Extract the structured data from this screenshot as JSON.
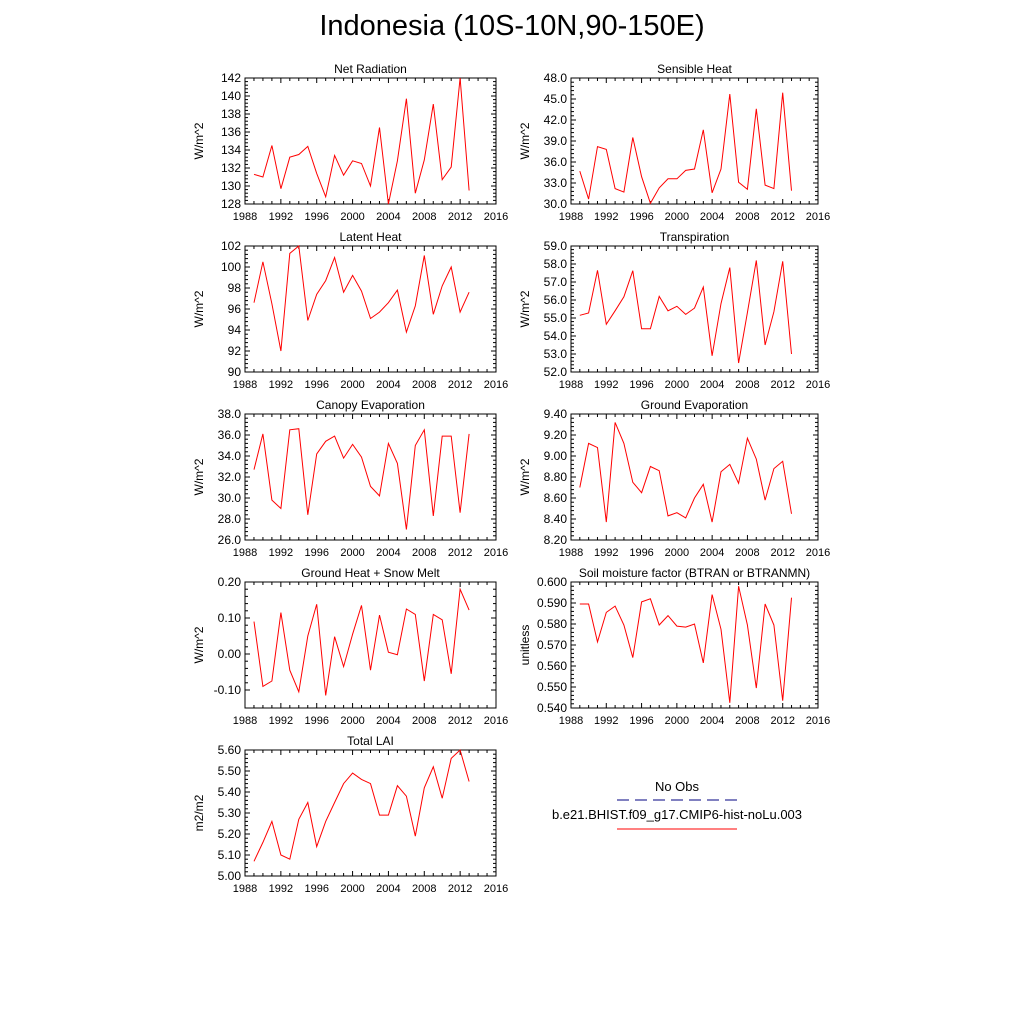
{
  "figure": {
    "title": "Indonesia (10S-10N,90-150E)",
    "series_color": "#ff0000",
    "obs_color": "#000080"
  },
  "legend": {
    "obs_label": "No Obs",
    "model_label": "b.e21.BHIST.f09_g17.CMIP6-hist-noLu.003"
  },
  "chart_data": [
    {
      "type": "line",
      "title": "Net Radiation",
      "ylabel": "W/m^2",
      "ylim": [
        128,
        142
      ],
      "yticks": [
        "128",
        "130",
        "132",
        "134",
        "136",
        "138",
        "140",
        "142"
      ],
      "xlim": [
        1988,
        2016
      ],
      "xticks": [
        "1988",
        "1992",
        "1996",
        "2000",
        "2004",
        "2008",
        "2012",
        "2016"
      ],
      "series": [
        {
          "name": "b.e21.BHIST.f09_g17.CMIP6-hist-noLu.003",
          "x": [
            1989,
            1990,
            1991,
            1992,
            1993,
            1994,
            1995,
            1996,
            1997,
            1998,
            1999,
            2000,
            2001,
            2002,
            2003,
            2004,
            2005,
            2006,
            2007,
            2008,
            2009,
            2010,
            2011,
            2012,
            2013
          ],
          "values": [
            131.3,
            131.0,
            134.5,
            129.7,
            133.2,
            133.5,
            134.4,
            131.4,
            128.8,
            133.4,
            131.2,
            132.8,
            132.5,
            130.0,
            136.5,
            128.0,
            132.8,
            139.7,
            129.2,
            132.9,
            139.1,
            130.7,
            132.1,
            142.0,
            129.5
          ]
        }
      ]
    },
    {
      "type": "line",
      "title": "Sensible Heat",
      "ylabel": "W/m^2",
      "ylim": [
        30,
        48
      ],
      "yticks": [
        "30.0",
        "33.0",
        "36.0",
        "39.0",
        "42.0",
        "45.0",
        "48.0"
      ],
      "xlim": [
        1988,
        2016
      ],
      "xticks": [
        "1988",
        "1992",
        "1996",
        "2000",
        "2004",
        "2008",
        "2012",
        "2016"
      ],
      "series": [
        {
          "name": "b.e21.BHIST.f09_g17.CMIP6-hist-noLu.003",
          "x": [
            1989,
            1990,
            1991,
            1992,
            1993,
            1994,
            1995,
            1996,
            1997,
            1998,
            1999,
            2000,
            2001,
            2002,
            2003,
            2004,
            2005,
            2006,
            2007,
            2008,
            2009,
            2010,
            2011,
            2012,
            2013
          ],
          "values": [
            34.7,
            30.7,
            38.2,
            37.8,
            32.2,
            31.7,
            39.5,
            33.9,
            30.1,
            32.3,
            33.6,
            33.6,
            34.8,
            35.0,
            40.6,
            31.6,
            35.0,
            45.7,
            33.1,
            32.1,
            43.6,
            32.7,
            32.2,
            45.9,
            31.9
          ]
        }
      ]
    },
    {
      "type": "line",
      "title": "Latent Heat",
      "ylabel": "W/m^2",
      "ylim": [
        90,
        102
      ],
      "yticks": [
        "90",
        "92",
        "94",
        "96",
        "98",
        "100",
        "102"
      ],
      "xlim": [
        1988,
        2016
      ],
      "xticks": [
        "1988",
        "1992",
        "1996",
        "2000",
        "2004",
        "2008",
        "2012",
        "2016"
      ],
      "series": [
        {
          "name": "b.e21.BHIST.f09_g17.CMIP6-hist-noLu.003",
          "x": [
            1989,
            1990,
            1991,
            1992,
            1993,
            1994,
            1995,
            1996,
            1997,
            1998,
            1999,
            2000,
            2001,
            2002,
            2003,
            2004,
            2005,
            2006,
            2007,
            2008,
            2009,
            2010,
            2011,
            2012,
            2013
          ],
          "values": [
            96.6,
            100.5,
            96.5,
            92.0,
            101.3,
            102.0,
            94.9,
            97.4,
            98.7,
            100.9,
            97.6,
            99.2,
            97.7,
            95.1,
            95.7,
            96.6,
            97.8,
            93.8,
            96.3,
            101.1,
            95.5,
            98.2,
            100.0,
            95.7,
            97.6
          ]
        }
      ]
    },
    {
      "type": "line",
      "title": "Transpiration",
      "ylabel": "W/m^2",
      "ylim": [
        52,
        59
      ],
      "yticks": [
        "52.0",
        "53.0",
        "54.0",
        "55.0",
        "56.0",
        "57.0",
        "58.0",
        "59.0"
      ],
      "xlim": [
        1988,
        2016
      ],
      "xticks": [
        "1988",
        "1992",
        "1996",
        "2000",
        "2004",
        "2008",
        "2012",
        "2016"
      ],
      "series": [
        {
          "name": "b.e21.BHIST.f09_g17.CMIP6-hist-noLu.003",
          "x": [
            1989,
            1990,
            1991,
            1992,
            1993,
            1994,
            1995,
            1996,
            1997,
            1998,
            1999,
            2000,
            2001,
            2002,
            2003,
            2004,
            2005,
            2006,
            2007,
            2008,
            2009,
            2010,
            2011,
            2012,
            2013
          ],
          "values": [
            55.15,
            55.28,
            57.65,
            54.65,
            55.4,
            56.18,
            57.63,
            54.4,
            54.4,
            56.2,
            55.4,
            55.65,
            55.2,
            55.55,
            56.72,
            52.9,
            55.8,
            57.8,
            52.5,
            55.3,
            58.2,
            53.5,
            55.35,
            58.15,
            53.0
          ]
        }
      ]
    },
    {
      "type": "line",
      "title": "Canopy Evaporation",
      "ylabel": "W/m^2",
      "ylim": [
        26,
        38
      ],
      "yticks": [
        "26.0",
        "28.0",
        "30.0",
        "32.0",
        "34.0",
        "36.0",
        "38.0"
      ],
      "xlim": [
        1988,
        2016
      ],
      "xticks": [
        "1988",
        "1992",
        "1996",
        "2000",
        "2004",
        "2008",
        "2012",
        "2016"
      ],
      "series": [
        {
          "name": "b.e21.BHIST.f09_g17.CMIP6-hist-noLu.003",
          "x": [
            1989,
            1990,
            1991,
            1992,
            1993,
            1994,
            1995,
            1996,
            1997,
            1998,
            1999,
            2000,
            2001,
            2002,
            2003,
            2004,
            2005,
            2006,
            2007,
            2008,
            2009,
            2010,
            2011,
            2012,
            2013
          ],
          "values": [
            32.7,
            36.1,
            29.8,
            29.0,
            36.5,
            36.6,
            28.4,
            34.2,
            35.4,
            35.9,
            33.8,
            35.1,
            33.9,
            31.1,
            30.2,
            35.2,
            33.3,
            27.0,
            35.0,
            36.5,
            28.3,
            35.9,
            35.9,
            28.6,
            36.1
          ]
        }
      ]
    },
    {
      "type": "line",
      "title": "Ground Evaporation",
      "ylabel": "W/m^2",
      "ylim": [
        8.2,
        9.4
      ],
      "yticks": [
        "8.20",
        "8.40",
        "8.60",
        "8.80",
        "9.00",
        "9.20",
        "9.40"
      ],
      "xlim": [
        1988,
        2016
      ],
      "xticks": [
        "1988",
        "1992",
        "1996",
        "2000",
        "2004",
        "2008",
        "2012",
        "2016"
      ],
      "series": [
        {
          "name": "b.e21.BHIST.f09_g17.CMIP6-hist-noLu.003",
          "x": [
            1989,
            1990,
            1991,
            1992,
            1993,
            1994,
            1995,
            1996,
            1997,
            1998,
            1999,
            2000,
            2001,
            2002,
            2003,
            2004,
            2005,
            2006,
            2007,
            2008,
            2009,
            2010,
            2011,
            2012,
            2013
          ],
          "values": [
            8.7,
            9.12,
            9.08,
            8.37,
            9.32,
            9.12,
            8.75,
            8.65,
            8.9,
            8.86,
            8.43,
            8.46,
            8.41,
            8.6,
            8.73,
            8.37,
            8.85,
            8.92,
            8.74,
            9.17,
            8.97,
            8.58,
            8.88,
            8.95,
            8.45
          ]
        }
      ]
    },
    {
      "type": "line",
      "title": "Ground Heat + Snow Melt",
      "ylabel": "W/m^2",
      "ylim": [
        -0.15,
        0.2
      ],
      "yticks": [
        "-0.10",
        "0.00",
        "0.10",
        "0.20"
      ],
      "ytick_values": [
        -0.1,
        0.0,
        0.1,
        0.2
      ],
      "xlim": [
        1988,
        2016
      ],
      "xticks": [
        "1988",
        "1992",
        "1996",
        "2000",
        "2004",
        "2008",
        "2012",
        "2016"
      ],
      "series": [
        {
          "name": "b.e21.BHIST.f09_g17.CMIP6-hist-noLu.003",
          "x": [
            1989,
            1990,
            1991,
            1992,
            1993,
            1994,
            1995,
            1996,
            1997,
            1998,
            1999,
            2000,
            2001,
            2002,
            2003,
            2004,
            2005,
            2006,
            2007,
            2008,
            2009,
            2010,
            2011,
            2012,
            2013
          ],
          "values": [
            0.09,
            -0.09,
            -0.075,
            0.115,
            -0.045,
            -0.105,
            0.05,
            0.138,
            -0.115,
            0.048,
            -0.035,
            0.055,
            0.135,
            -0.045,
            0.108,
            0.005,
            -0.002,
            0.125,
            0.11,
            -0.075,
            0.11,
            0.095,
            -0.055,
            0.18,
            0.122
          ]
        }
      ]
    },
    {
      "type": "line",
      "title": "Soil moisture factor (BTRAN or BTRANMN)",
      "ylabel": "unitless",
      "ylim": [
        0.54,
        0.6
      ],
      "yticks": [
        "0.540",
        "0.550",
        "0.560",
        "0.570",
        "0.580",
        "0.590",
        "0.600"
      ],
      "xlim": [
        1988,
        2016
      ],
      "xticks": [
        "1988",
        "1992",
        "1996",
        "2000",
        "2004",
        "2008",
        "2012",
        "2016"
      ],
      "series": [
        {
          "name": "b.e21.BHIST.f09_g17.CMIP6-hist-noLu.003",
          "x": [
            1989,
            1990,
            1991,
            1992,
            1993,
            1994,
            1995,
            1996,
            1997,
            1998,
            1999,
            2000,
            2001,
            2002,
            2003,
            2004,
            2005,
            2006,
            2007,
            2008,
            2009,
            2010,
            2011,
            2012,
            2013
          ],
          "values": [
            0.5895,
            0.5895,
            0.5715,
            0.5855,
            0.5885,
            0.5795,
            0.564,
            0.5905,
            0.592,
            0.5795,
            0.584,
            0.579,
            0.5785,
            0.58,
            0.5615,
            0.594,
            0.5775,
            0.5425,
            0.598,
            0.5795,
            0.5495,
            0.5895,
            0.5795,
            0.5435,
            0.5925
          ]
        }
      ]
    },
    {
      "type": "line",
      "title": "Total LAI",
      "ylabel": "m2/m2",
      "ylim": [
        5.0,
        5.6
      ],
      "yticks": [
        "5.00",
        "5.10",
        "5.20",
        "5.30",
        "5.40",
        "5.50",
        "5.60"
      ],
      "xlim": [
        1988,
        2016
      ],
      "xticks": [
        "1988",
        "1992",
        "1996",
        "2000",
        "2004",
        "2008",
        "2012",
        "2016"
      ],
      "series": [
        {
          "name": "b.e21.BHIST.f09_g17.CMIP6-hist-noLu.003",
          "x": [
            1989,
            1990,
            1991,
            1992,
            1993,
            1994,
            1995,
            1996,
            1997,
            1998,
            1999,
            2000,
            2001,
            2002,
            2003,
            2004,
            2005,
            2006,
            2007,
            2008,
            2009,
            2010,
            2011,
            2012,
            2013
          ],
          "values": [
            5.07,
            5.16,
            5.26,
            5.1,
            5.08,
            5.27,
            5.35,
            5.14,
            5.26,
            5.35,
            5.44,
            5.49,
            5.46,
            5.44,
            5.29,
            5.29,
            5.43,
            5.38,
            5.19,
            5.42,
            5.52,
            5.37,
            5.56,
            5.6,
            5.45
          ]
        }
      ]
    }
  ]
}
